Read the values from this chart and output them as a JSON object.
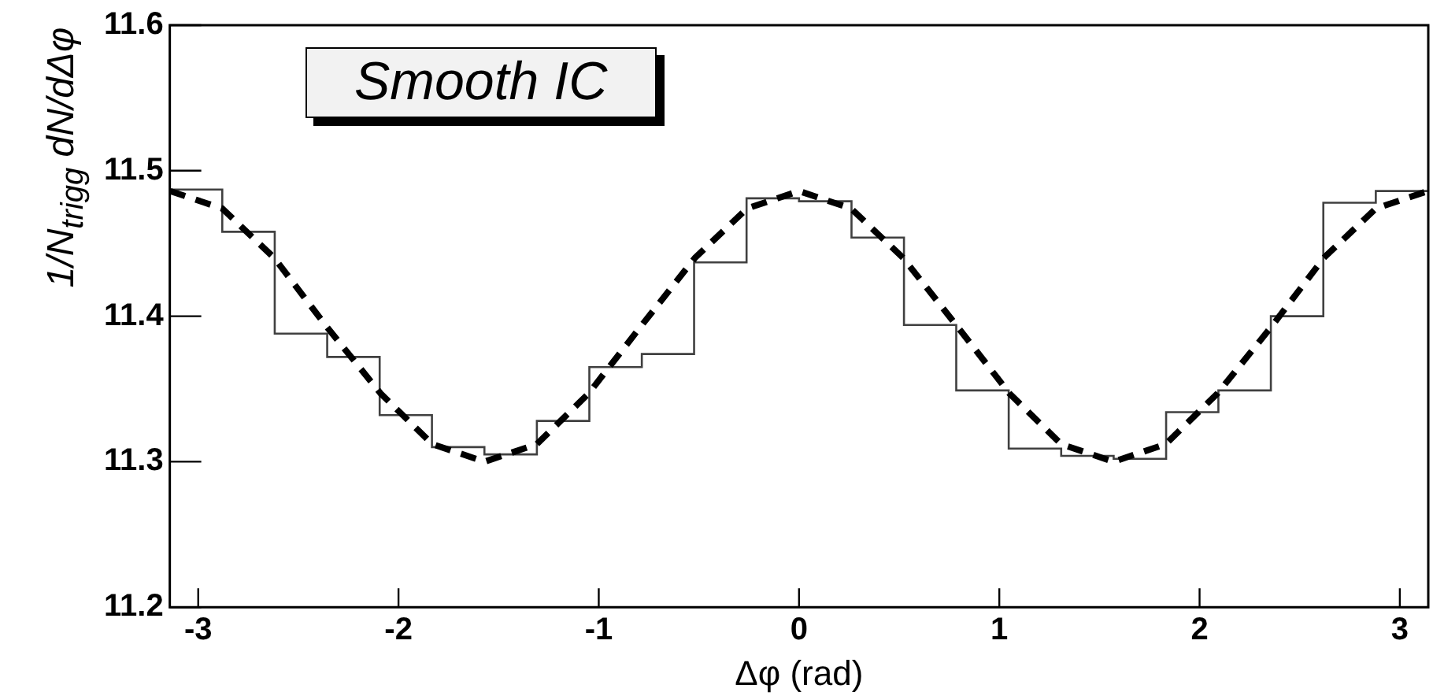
{
  "chart_data": {
    "type": "histogram",
    "xlabel": "Δφ (rad)",
    "ylabel": "1/N$_{trigg}$ dN/dΔφ",
    "annotations": [
      "Smooth IC"
    ],
    "xlim": [
      -3.142,
      3.142
    ],
    "ylim": [
      11.2,
      11.6
    ],
    "xticks": [
      -3,
      -2,
      -1,
      0,
      1,
      2,
      3
    ],
    "yticks": [
      11.2,
      11.3,
      11.4,
      11.5,
      11.6
    ],
    "grid": false,
    "legend": false,
    "marker": "none",
    "series": [
      {
        "type": "histogram",
        "color": "#404040",
        "bins": [
          -3.142,
          -2.88,
          -2.618,
          -2.356,
          -2.094,
          -1.833,
          -1.571,
          -1.309,
          -1.047,
          -0.785,
          -0.524,
          -0.262,
          0,
          0.262,
          0.524,
          0.785,
          1.047,
          1.309,
          1.571,
          1.833,
          2.094,
          2.356,
          2.618,
          2.88,
          3.142
        ],
        "values": [
          11.487,
          11.458,
          11.388,
          11.372,
          11.332,
          11.31,
          11.305,
          11.328,
          11.365,
          11.374,
          11.437,
          11.481,
          11.479,
          11.454,
          11.394,
          11.349,
          11.309,
          11.304,
          11.302,
          11.334,
          11.349,
          11.4,
          11.478,
          11.486
        ]
      },
      {
        "type": "line",
        "color": "#000000",
        "line_style": "dashed",
        "x": [
          -3.14,
          -2.88,
          -2.62,
          -2.36,
          -2.09,
          -1.83,
          -1.57,
          -1.31,
          -1.05,
          -0.79,
          -0.52,
          -0.26,
          0,
          0.26,
          0.52,
          0.79,
          1.05,
          1.31,
          1.57,
          1.83,
          2.09,
          2.36,
          2.62,
          2.88,
          3.14
        ],
        "values": [
          11.486,
          11.474,
          11.44,
          11.393,
          11.347,
          11.312,
          11.3,
          11.312,
          11.347,
          11.393,
          11.44,
          11.474,
          11.486,
          11.474,
          11.44,
          11.393,
          11.347,
          11.312,
          11.3,
          11.312,
          11.347,
          11.393,
          11.44,
          11.474,
          11.486
        ]
      }
    ]
  }
}
